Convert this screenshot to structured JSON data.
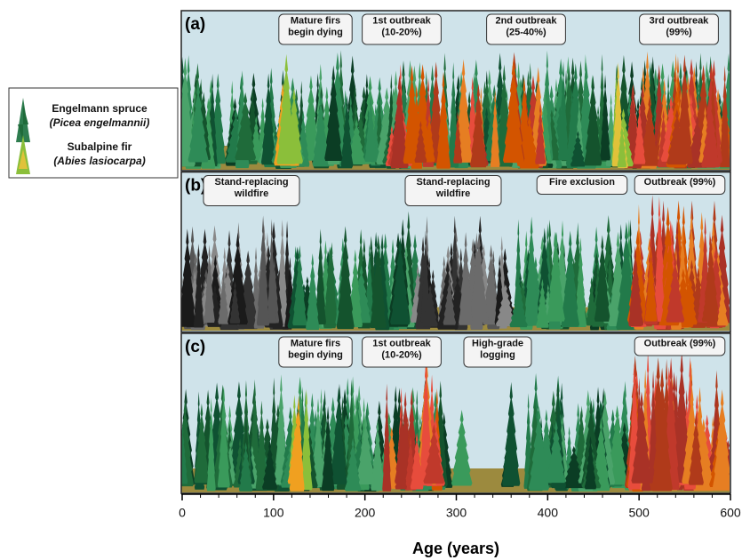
{
  "panels": [
    {
      "label": "(a)",
      "annotations": [
        {
          "lines": [
            "Mature firs",
            "begin dying"
          ]
        },
        {
          "lines": [
            "1st outbreak",
            "(10-20%)"
          ]
        },
        {
          "lines": [
            "2nd outbreak",
            "(25-40%)"
          ]
        },
        {
          "lines": [
            "3rd outbreak",
            "(99%)"
          ]
        }
      ]
    },
    {
      "label": "(b)",
      "annotations": [
        {
          "lines": [
            "Stand-replacing",
            "wildfire"
          ]
        },
        {
          "lines": [
            "Stand-replacing",
            "wildfire"
          ]
        },
        {
          "lines": [
            "Fire exclusion"
          ]
        },
        {
          "lines": [
            "Outbreak (99%)"
          ]
        }
      ]
    },
    {
      "label": "(c)",
      "annotations": [
        {
          "lines": [
            "Mature firs",
            "begin dying"
          ]
        },
        {
          "lines": [
            "1st outbreak",
            "(10-20%)"
          ]
        },
        {
          "lines": [
            "High-grade",
            "logging"
          ]
        },
        {
          "lines": [
            "Outbreak (99%)"
          ]
        }
      ]
    }
  ],
  "legend": [
    {
      "name": "Engelmann spruce",
      "latin": "(Picea engelmannii)"
    },
    {
      "name": "Subalpine fir",
      "latin": "(Abies lasiocarpa)"
    }
  ],
  "axis": {
    "label": "Age (years)",
    "xlim": [
      0,
      600
    ],
    "xticks": [
      0,
      100,
      200,
      300,
      400,
      500,
      600
    ]
  }
}
